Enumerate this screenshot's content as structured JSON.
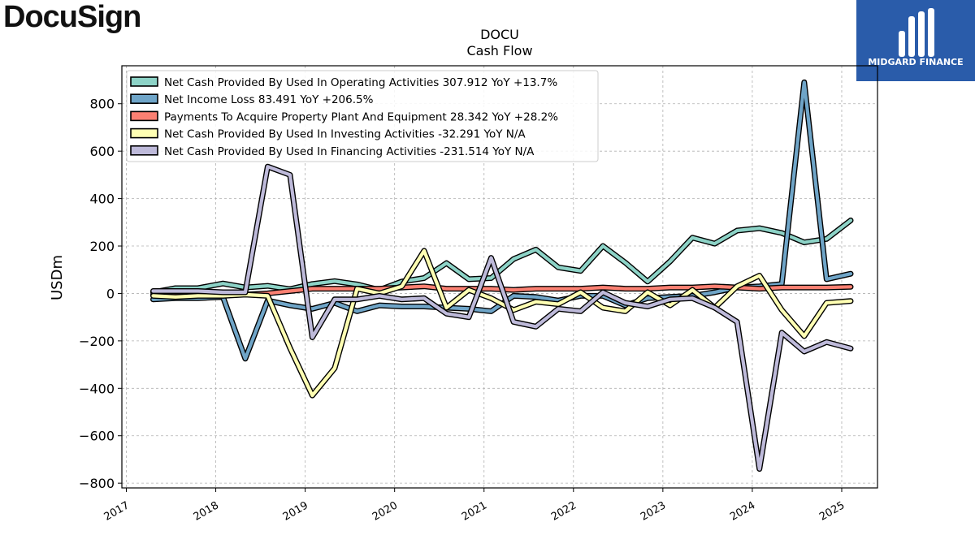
{
  "brand": {
    "name": "DocuSign",
    "badge_text": "MIDGARD FINANCE"
  },
  "chart_data": {
    "type": "line",
    "title": "DOCU",
    "subtitle": "Cash Flow",
    "xlabel": "",
    "ylabel": "USDm",
    "xlim": [
      2016.95,
      2025.4
    ],
    "ylim": [
      -820,
      960
    ],
    "yticks": [
      -800,
      -600,
      -400,
      -200,
      0,
      200,
      400,
      600,
      800
    ],
    "ytick_labels": [
      "−800",
      "−600",
      "−400",
      "−200",
      "0",
      "200",
      "400",
      "600",
      "800"
    ],
    "xticks": [
      2017,
      2018,
      2019,
      2020,
      2021,
      2022,
      2023,
      2024,
      2025
    ],
    "xtick_labels": [
      "2017",
      "2018",
      "2019",
      "2020",
      "2021",
      "2022",
      "2023",
      "2024",
      "2025"
    ],
    "grid": true,
    "legend_position": "top-left",
    "x": [
      2017.3,
      2017.55,
      2017.8,
      2018.08,
      2018.33,
      2018.58,
      2018.83,
      2019.08,
      2019.33,
      2019.58,
      2019.83,
      2020.08,
      2020.33,
      2020.58,
      2020.83,
      2021.08,
      2021.33,
      2021.58,
      2021.83,
      2022.08,
      2022.33,
      2022.58,
      2022.83,
      2023.08,
      2023.33,
      2023.58,
      2023.83,
      2024.08,
      2024.33,
      2024.58,
      2024.83,
      2025.1
    ],
    "series": [
      {
        "name": "Net Cash Provided By Used In Operating Activities  307.912 YoY +13.7%",
        "color": "#8dd3c7",
        "values": [
          5,
          22,
          22,
          42,
          25,
          32,
          18,
          40,
          52,
          38,
          15,
          50,
          65,
          128,
          60,
          65,
          145,
          185,
          110,
          95,
          200,
          130,
          50,
          135,
          235,
          210,
          265,
          275,
          255,
          215,
          230,
          308
        ]
      },
      {
        "name": "Net Income Loss  83.491 YoY +206.5%",
        "color": "#6fa5c8",
        "values": [
          -25,
          -20,
          -20,
          -15,
          -275,
          -30,
          -50,
          -65,
          -40,
          -75,
          -50,
          -55,
          -55,
          -60,
          -65,
          -75,
          -10,
          -15,
          -30,
          -10,
          -10,
          -50,
          -20,
          -15,
          -10,
          5,
          25,
          30,
          40,
          890,
          60,
          83
        ]
      },
      {
        "name": "Payments To Acquire Property Plant And Equipment  28.342 YoY +28.2%",
        "color": "#fb8072",
        "values": [
          -5,
          -10,
          -8,
          -5,
          -5,
          0,
          10,
          20,
          20,
          20,
          20,
          25,
          30,
          20,
          20,
          20,
          15,
          20,
          20,
          20,
          25,
          20,
          20,
          25,
          25,
          30,
          25,
          20,
          25,
          25,
          25,
          28
        ]
      },
      {
        "name": "Net Cash Provided By Used In Investing Activities  -32.291 YoY N/A",
        "color": "#ffffb3",
        "values": [
          -10,
          -15,
          -10,
          -10,
          -5,
          -10,
          -230,
          -430,
          -315,
          20,
          0,
          30,
          180,
          -60,
          15,
          -20,
          -70,
          -35,
          -45,
          5,
          -60,
          -75,
          5,
          -50,
          15,
          -60,
          30,
          75,
          -70,
          -180,
          -40,
          -32
        ]
      },
      {
        "name": "Net Cash Provided By Used In Financing Activities  -231.514 YoY N/A",
        "color": "#bebada",
        "values": [
          10,
          10,
          10,
          5,
          5,
          535,
          500,
          -185,
          -25,
          -25,
          -10,
          -25,
          -20,
          -85,
          -100,
          150,
          -120,
          -140,
          -65,
          -75,
          5,
          -40,
          -55,
          -25,
          -20,
          -60,
          -120,
          -740,
          -165,
          -245,
          -205,
          -232
        ]
      }
    ]
  }
}
